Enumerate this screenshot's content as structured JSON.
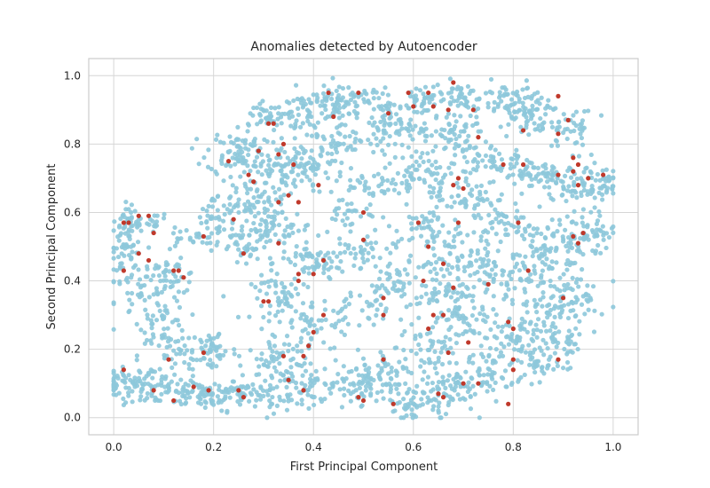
{
  "chart_data": {
    "type": "scatter",
    "title": "Anomalies detected by Autoencoder",
    "xlabel": "First Principal Component",
    "ylabel": "Second Principal Component",
    "xlim": [
      -0.05,
      1.05
    ],
    "ylim": [
      -0.05,
      1.05
    ],
    "xticks": [
      "0.0",
      "0.2",
      "0.4",
      "0.6",
      "0.8",
      "1.0"
    ],
    "yticks": [
      "0.0",
      "0.2",
      "0.4",
      "0.6",
      "0.8",
      "1.0"
    ],
    "grid": true,
    "legend": "none",
    "colors": {
      "normal": "#8dc8da",
      "anomaly": "#c0392b",
      "grid": "#d6d6d6",
      "spine": "#cccccc"
    },
    "series": [
      {
        "role": "normal",
        "clusters": [
          [
            0.03,
            0.1,
            0.04,
            0.03,
            60
          ],
          [
            0.1,
            0.08,
            0.05,
            0.03,
            60
          ],
          [
            0.18,
            0.07,
            0.05,
            0.03,
            60
          ],
          [
            0.26,
            0.07,
            0.04,
            0.03,
            50
          ],
          [
            0.34,
            0.08,
            0.04,
            0.04,
            40
          ],
          [
            0.4,
            0.09,
            0.03,
            0.03,
            30
          ],
          [
            0.02,
            0.5,
            0.02,
            0.07,
            60
          ],
          [
            0.05,
            0.57,
            0.04,
            0.02,
            40
          ],
          [
            0.06,
            0.38,
            0.04,
            0.06,
            50
          ],
          [
            0.1,
            0.28,
            0.03,
            0.04,
            40
          ],
          [
            0.12,
            0.41,
            0.03,
            0.03,
            40
          ],
          [
            0.15,
            0.52,
            0.04,
            0.02,
            25
          ],
          [
            0.13,
            0.18,
            0.05,
            0.04,
            50
          ],
          [
            0.2,
            0.2,
            0.03,
            0.04,
            40
          ],
          [
            0.2,
            0.58,
            0.03,
            0.04,
            30
          ],
          [
            0.25,
            0.78,
            0.04,
            0.04,
            80
          ],
          [
            0.26,
            0.62,
            0.04,
            0.06,
            80
          ],
          [
            0.26,
            0.5,
            0.03,
            0.04,
            40
          ],
          [
            0.32,
            0.88,
            0.04,
            0.03,
            50
          ],
          [
            0.33,
            0.72,
            0.04,
            0.05,
            70
          ],
          [
            0.33,
            0.55,
            0.04,
            0.04,
            50
          ],
          [
            0.34,
            0.35,
            0.04,
            0.04,
            60
          ],
          [
            0.33,
            0.16,
            0.04,
            0.04,
            50
          ],
          [
            0.4,
            0.9,
            0.04,
            0.04,
            60
          ],
          [
            0.4,
            0.74,
            0.04,
            0.04,
            60
          ],
          [
            0.4,
            0.45,
            0.04,
            0.04,
            60
          ],
          [
            0.39,
            0.25,
            0.04,
            0.05,
            40
          ],
          [
            0.45,
            0.93,
            0.03,
            0.03,
            40
          ],
          [
            0.46,
            0.82,
            0.04,
            0.03,
            40
          ],
          [
            0.47,
            0.6,
            0.04,
            0.03,
            30
          ],
          [
            0.48,
            0.48,
            0.05,
            0.03,
            40
          ],
          [
            0.47,
            0.3,
            0.05,
            0.04,
            40
          ],
          [
            0.48,
            0.1,
            0.05,
            0.04,
            60
          ],
          [
            0.52,
            0.92,
            0.03,
            0.03,
            40
          ],
          [
            0.53,
            0.68,
            0.04,
            0.03,
            40
          ],
          [
            0.55,
            0.4,
            0.04,
            0.05,
            40
          ],
          [
            0.55,
            0.12,
            0.04,
            0.05,
            60
          ],
          [
            0.57,
            0.85,
            0.04,
            0.04,
            60
          ],
          [
            0.6,
            0.04,
            0.04,
            0.03,
            50
          ],
          [
            0.61,
            0.93,
            0.03,
            0.03,
            40
          ],
          [
            0.62,
            0.72,
            0.04,
            0.04,
            60
          ],
          [
            0.63,
            0.55,
            0.04,
            0.04,
            50
          ],
          [
            0.64,
            0.38,
            0.04,
            0.05,
            60
          ],
          [
            0.63,
            0.2,
            0.04,
            0.05,
            50
          ],
          [
            0.66,
            0.08,
            0.04,
            0.04,
            50
          ],
          [
            0.69,
            0.94,
            0.03,
            0.03,
            40
          ],
          [
            0.68,
            0.82,
            0.04,
            0.04,
            60
          ],
          [
            0.7,
            0.65,
            0.04,
            0.04,
            50
          ],
          [
            0.7,
            0.47,
            0.04,
            0.04,
            50
          ],
          [
            0.71,
            0.3,
            0.04,
            0.05,
            60
          ],
          [
            0.73,
            0.12,
            0.05,
            0.04,
            60
          ],
          [
            0.77,
            0.93,
            0.04,
            0.03,
            50
          ],
          [
            0.76,
            0.75,
            0.04,
            0.04,
            50
          ],
          [
            0.78,
            0.57,
            0.04,
            0.04,
            50
          ],
          [
            0.78,
            0.4,
            0.04,
            0.05,
            60
          ],
          [
            0.8,
            0.22,
            0.04,
            0.05,
            60
          ],
          [
            0.84,
            0.88,
            0.04,
            0.04,
            70
          ],
          [
            0.85,
            0.7,
            0.04,
            0.04,
            60
          ],
          [
            0.85,
            0.5,
            0.04,
            0.05,
            60
          ],
          [
            0.86,
            0.32,
            0.04,
            0.05,
            60
          ],
          [
            0.86,
            0.16,
            0.03,
            0.04,
            40
          ],
          [
            0.92,
            0.84,
            0.03,
            0.04,
            40
          ],
          [
            0.93,
            0.68,
            0.04,
            0.04,
            60
          ],
          [
            0.93,
            0.52,
            0.04,
            0.05,
            60
          ],
          [
            0.92,
            0.36,
            0.03,
            0.05,
            50
          ],
          [
            0.9,
            0.22,
            0.03,
            0.04,
            40
          ],
          [
            0.98,
            0.68,
            0.02,
            0.04,
            30
          ],
          [
            0.97,
            0.54,
            0.02,
            0.03,
            20
          ]
        ]
      },
      {
        "role": "anomaly",
        "points": [
          [
            0.02,
            0.43
          ],
          [
            0.02,
            0.57
          ],
          [
            0.03,
            0.57
          ],
          [
            0.05,
            0.59
          ],
          [
            0.05,
            0.48
          ],
          [
            0.07,
            0.59
          ],
          [
            0.07,
            0.46
          ],
          [
            0.08,
            0.54
          ],
          [
            0.12,
            0.43
          ],
          [
            0.13,
            0.43
          ],
          [
            0.14,
            0.41
          ],
          [
            0.11,
            0.17
          ],
          [
            0.18,
            0.53
          ],
          [
            0.18,
            0.19
          ],
          [
            0.02,
            0.14
          ],
          [
            0.08,
            0.08
          ],
          [
            0.12,
            0.05
          ],
          [
            0.16,
            0.09
          ],
          [
            0.19,
            0.08
          ],
          [
            0.25,
            0.08
          ],
          [
            0.26,
            0.06
          ],
          [
            0.23,
            0.75
          ],
          [
            0.24,
            0.58
          ],
          [
            0.26,
            0.48
          ],
          [
            0.27,
            0.71
          ],
          [
            0.28,
            0.69
          ],
          [
            0.29,
            0.78
          ],
          [
            0.31,
            0.86
          ],
          [
            0.32,
            0.86
          ],
          [
            0.33,
            0.77
          ],
          [
            0.33,
            0.63
          ],
          [
            0.33,
            0.51
          ],
          [
            0.34,
            0.8
          ],
          [
            0.35,
            0.65
          ],
          [
            0.36,
            0.74
          ],
          [
            0.37,
            0.63
          ],
          [
            0.3,
            0.34
          ],
          [
            0.31,
            0.34
          ],
          [
            0.34,
            0.18
          ],
          [
            0.35,
            0.11
          ],
          [
            0.37,
            0.4
          ],
          [
            0.37,
            0.42
          ],
          [
            0.38,
            0.18
          ],
          [
            0.38,
            0.08
          ],
          [
            0.39,
            0.21
          ],
          [
            0.4,
            0.25
          ],
          [
            0.4,
            0.42
          ],
          [
            0.41,
            0.68
          ],
          [
            0.42,
            0.46
          ],
          [
            0.42,
            0.3
          ],
          [
            0.43,
            0.95
          ],
          [
            0.44,
            0.88
          ],
          [
            0.49,
            0.95
          ],
          [
            0.5,
            0.6
          ],
          [
            0.5,
            0.52
          ],
          [
            0.49,
            0.06
          ],
          [
            0.5,
            0.05
          ],
          [
            0.54,
            0.35
          ],
          [
            0.54,
            0.3
          ],
          [
            0.54,
            0.17
          ],
          [
            0.55,
            0.89
          ],
          [
            0.56,
            0.04
          ],
          [
            0.59,
            0.95
          ],
          [
            0.6,
            0.91
          ],
          [
            0.61,
            0.57
          ],
          [
            0.62,
            0.4
          ],
          [
            0.63,
            0.95
          ],
          [
            0.63,
            0.5
          ],
          [
            0.63,
            0.26
          ],
          [
            0.64,
            0.91
          ],
          [
            0.64,
            0.3
          ],
          [
            0.65,
            0.07
          ],
          [
            0.66,
            0.3
          ],
          [
            0.66,
            0.45
          ],
          [
            0.66,
            0.06
          ],
          [
            0.67,
            0.19
          ],
          [
            0.67,
            0.9
          ],
          [
            0.68,
            0.98
          ],
          [
            0.68,
            0.68
          ],
          [
            0.68,
            0.38
          ],
          [
            0.69,
            0.7
          ],
          [
            0.69,
            0.57
          ],
          [
            0.7,
            0.67
          ],
          [
            0.7,
            0.1
          ],
          [
            0.71,
            0.22
          ],
          [
            0.72,
            0.9
          ],
          [
            0.73,
            0.82
          ],
          [
            0.73,
            0.1
          ],
          [
            0.75,
            0.39
          ],
          [
            0.78,
            0.74
          ],
          [
            0.79,
            0.28
          ],
          [
            0.79,
            0.04
          ],
          [
            0.8,
            0.26
          ],
          [
            0.8,
            0.17
          ],
          [
            0.8,
            0.14
          ],
          [
            0.81,
            0.57
          ],
          [
            0.82,
            0.84
          ],
          [
            0.82,
            0.74
          ],
          [
            0.83,
            0.43
          ],
          [
            0.89,
            0.94
          ],
          [
            0.89,
            0.83
          ],
          [
            0.89,
            0.71
          ],
          [
            0.89,
            0.17
          ],
          [
            0.9,
            0.35
          ],
          [
            0.91,
            0.87
          ],
          [
            0.92,
            0.76
          ],
          [
            0.92,
            0.53
          ],
          [
            0.93,
            0.68
          ],
          [
            0.93,
            0.51
          ],
          [
            0.93,
            0.74
          ],
          [
            0.94,
            0.54
          ],
          [
            0.95,
            0.7
          ],
          [
            0.98,
            0.71
          ],
          [
            0.92,
            0.72
          ]
        ]
      }
    ]
  }
}
